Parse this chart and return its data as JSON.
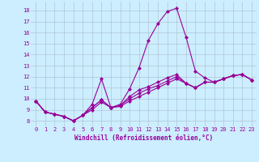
{
  "xlabel": "Windchill (Refroidissement éolien,°C)",
  "background_color": "#cceeff",
  "grid_color": "#aabbcc",
  "line_color": "#990099",
  "xlim": [
    -0.5,
    23.5
  ],
  "ylim": [
    7.5,
    18.8
  ],
  "xticks": [
    0,
    1,
    2,
    3,
    4,
    5,
    6,
    7,
    8,
    9,
    10,
    11,
    12,
    13,
    14,
    15,
    16,
    17,
    18,
    19,
    20,
    21,
    22,
    23
  ],
  "yticks": [
    8,
    9,
    10,
    11,
    12,
    13,
    14,
    15,
    16,
    17,
    18
  ],
  "series": [
    [
      9.8,
      8.8,
      8.6,
      8.4,
      8.0,
      8.5,
      9.5,
      11.8,
      9.2,
      9.5,
      10.9,
      12.8,
      15.3,
      16.8,
      17.9,
      18.2,
      15.6,
      12.5,
      11.9,
      11.5,
      11.8,
      12.1,
      12.2,
      11.7
    ],
    [
      9.8,
      8.8,
      8.6,
      8.4,
      8.0,
      8.5,
      9.2,
      9.9,
      9.2,
      9.4,
      10.2,
      10.8,
      11.1,
      11.5,
      11.9,
      12.2,
      11.4,
      11.0,
      11.5,
      11.5,
      11.8,
      12.1,
      12.2,
      11.7
    ],
    [
      9.8,
      8.8,
      8.6,
      8.4,
      8.0,
      8.5,
      9.2,
      9.9,
      9.2,
      9.4,
      10.0,
      10.5,
      10.9,
      11.2,
      11.6,
      12.0,
      11.4,
      11.0,
      11.5,
      11.5,
      11.8,
      12.1,
      12.2,
      11.7
    ],
    [
      9.8,
      8.8,
      8.6,
      8.4,
      8.0,
      8.5,
      9.0,
      9.7,
      9.2,
      9.3,
      9.8,
      10.2,
      10.6,
      11.0,
      11.4,
      11.8,
      11.4,
      11.0,
      11.5,
      11.5,
      11.8,
      12.1,
      12.2,
      11.7
    ]
  ],
  "tick_fontsize": 5,
  "xlabel_fontsize": 5.5,
  "marker_size": 2.2,
  "linewidth": 0.8
}
